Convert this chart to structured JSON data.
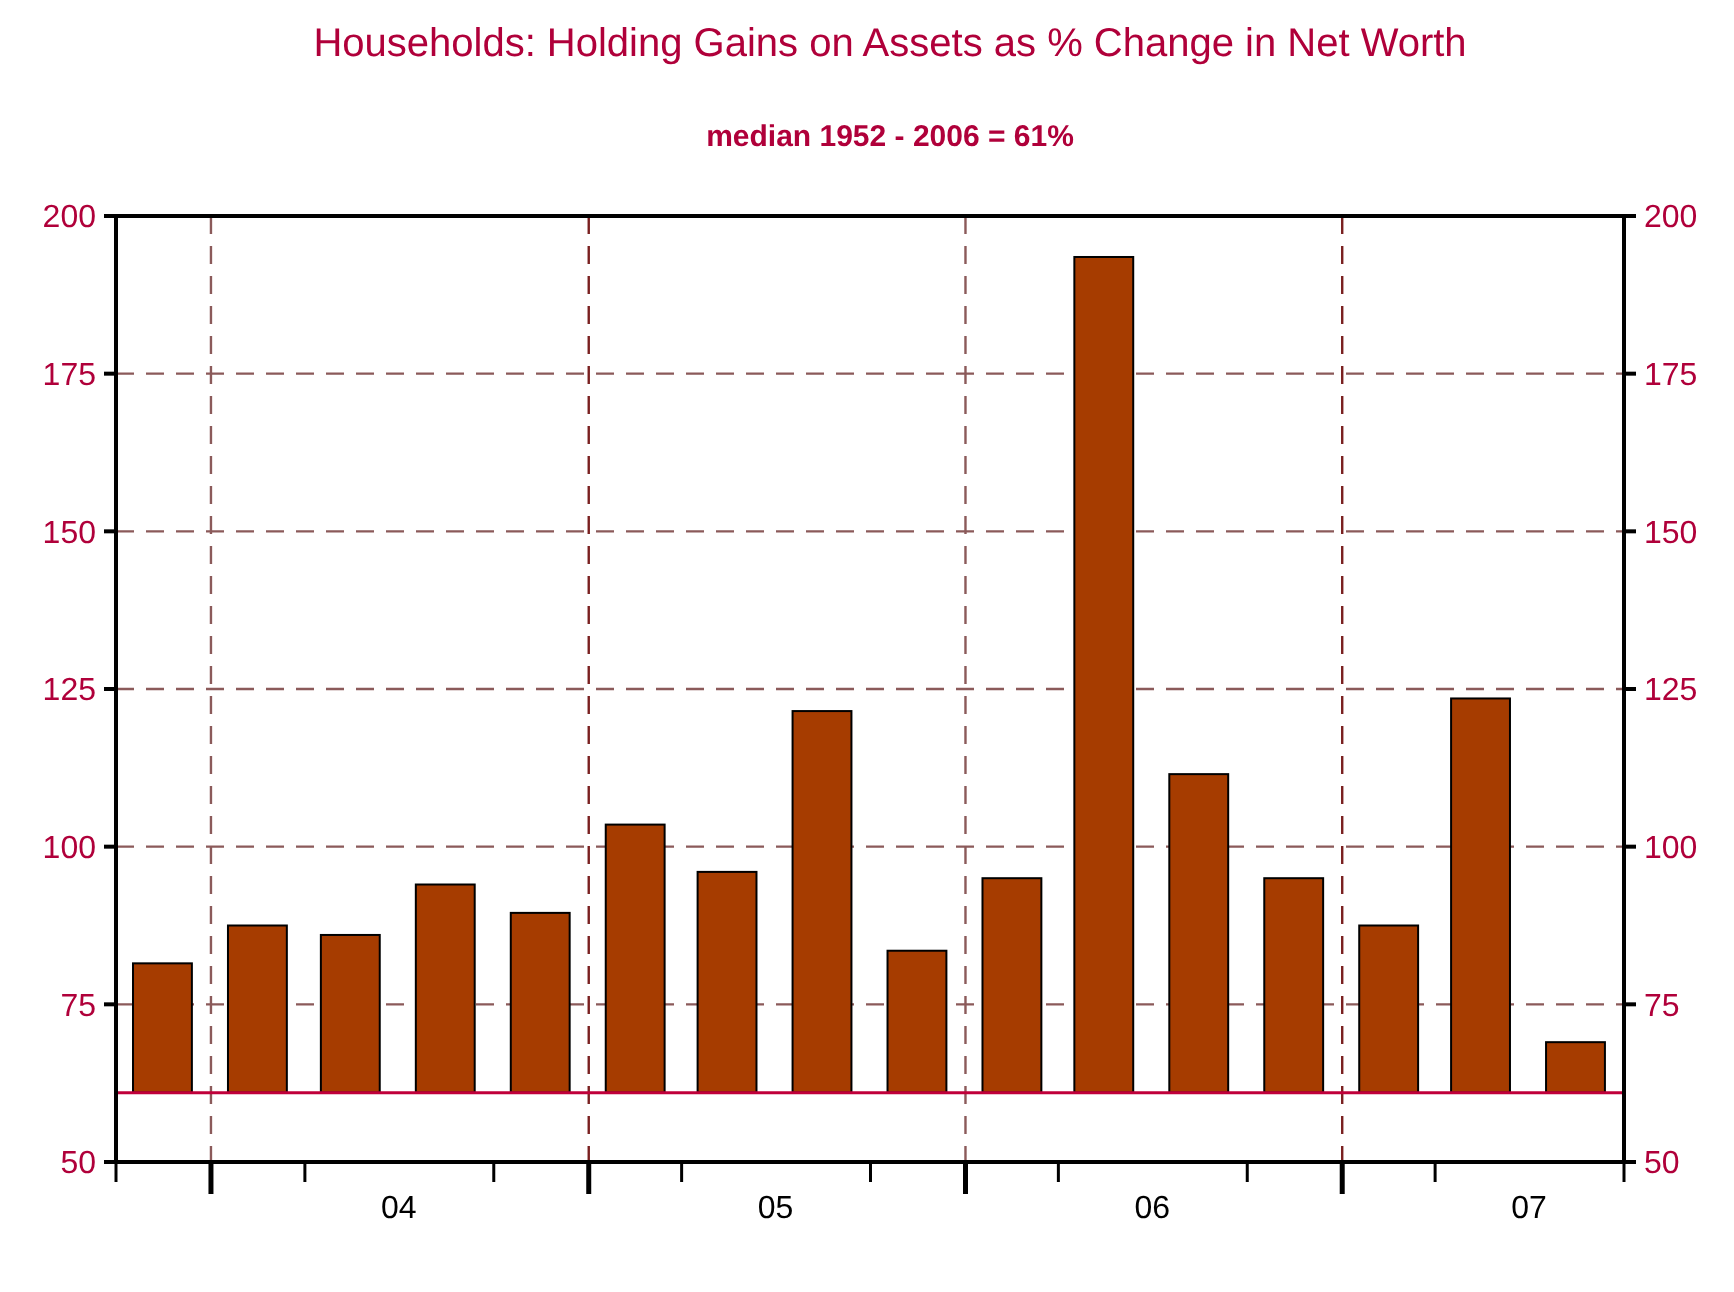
{
  "chart_data": {
    "type": "bar",
    "title": "Households: Holding Gains on Assets as % Change in Net Worth",
    "subtitle": "median 1952 - 2006 = 61%",
    "x": [
      "2003-11-15",
      "2004-02-15",
      "2004-05-15",
      "2004-08-15",
      "2004-11-15",
      "2005-02-15",
      "2005-05-15",
      "2005-08-15",
      "2005-11-15",
      "2006-02-15",
      "2006-05-15",
      "2006-08-15",
      "2006-11-15",
      "2007-02-15",
      "2007-05-15",
      "2007-08-15"
    ],
    "base": [
      61,
      61,
      61,
      61,
      61,
      61,
      61,
      61,
      61,
      61,
      61,
      61,
      61,
      61,
      61,
      61
    ],
    "values": [
      20.5,
      26.5,
      25,
      33,
      28.5,
      42.5,
      35,
      60.5,
      22.5,
      34,
      132.5,
      50.5,
      34,
      26.5,
      62.5,
      8
    ],
    "color": "#a63c00",
    "xlim": [
      "2003-10-01",
      "2007-10-01"
    ],
    "xticks": [
      {
        "value": "2003-10-01",
        "label": null
      },
      {
        "value": "2004-01-01",
        "label": null
      },
      {
        "value": "2004-04-01",
        "label": null
      },
      {
        "value": "2004-07-01",
        "label": "04"
      },
      {
        "value": "2004-10-01",
        "label": null
      },
      {
        "value": "2005-01-01",
        "label": null
      },
      {
        "value": "2005-04-01",
        "label": null
      },
      {
        "value": "2005-07-01",
        "label": "05"
      },
      {
        "value": "2005-10-01",
        "label": null
      },
      {
        "value": "2006-01-01",
        "label": null
      },
      {
        "value": "2006-04-01",
        "label": null
      },
      {
        "value": "2006-07-01",
        "label": "06"
      },
      {
        "value": "2006-10-01",
        "label": null
      },
      {
        "value": "2007-01-01",
        "label": null
      },
      {
        "value": "2007-04-01",
        "label": null
      },
      {
        "value": "2007-07-01",
        "label": "07"
      },
      {
        "value": "2007-10-01",
        "label": null
      }
    ],
    "ylim": [
      50,
      200
    ],
    "yticks": [
      50,
      75,
      100,
      125,
      150,
      175,
      200
    ],
    "y2lim": [
      50,
      200
    ],
    "y2ticks": [
      50,
      75,
      100,
      125,
      150,
      175,
      200
    ],
    "grid": "y",
    "ref_lines": [
      {
        "axis": "y",
        "value": 61,
        "color": "#c0003a",
        "line_style": "solid"
      },
      {
        "axis": "x",
        "value": "2004-01-01",
        "color": "#8b5a5a",
        "line_style": "dashed"
      },
      {
        "axis": "x",
        "value": "2005-01-01",
        "color": "#7a2020",
        "line_style": "dashed"
      },
      {
        "axis": "x",
        "value": "2006-01-01",
        "color": "#8b5a5a",
        "line_style": "dashed"
      },
      {
        "axis": "x",
        "value": "2007-01-01",
        "color": "#7a2020",
        "line_style": "dashed"
      }
    ]
  }
}
